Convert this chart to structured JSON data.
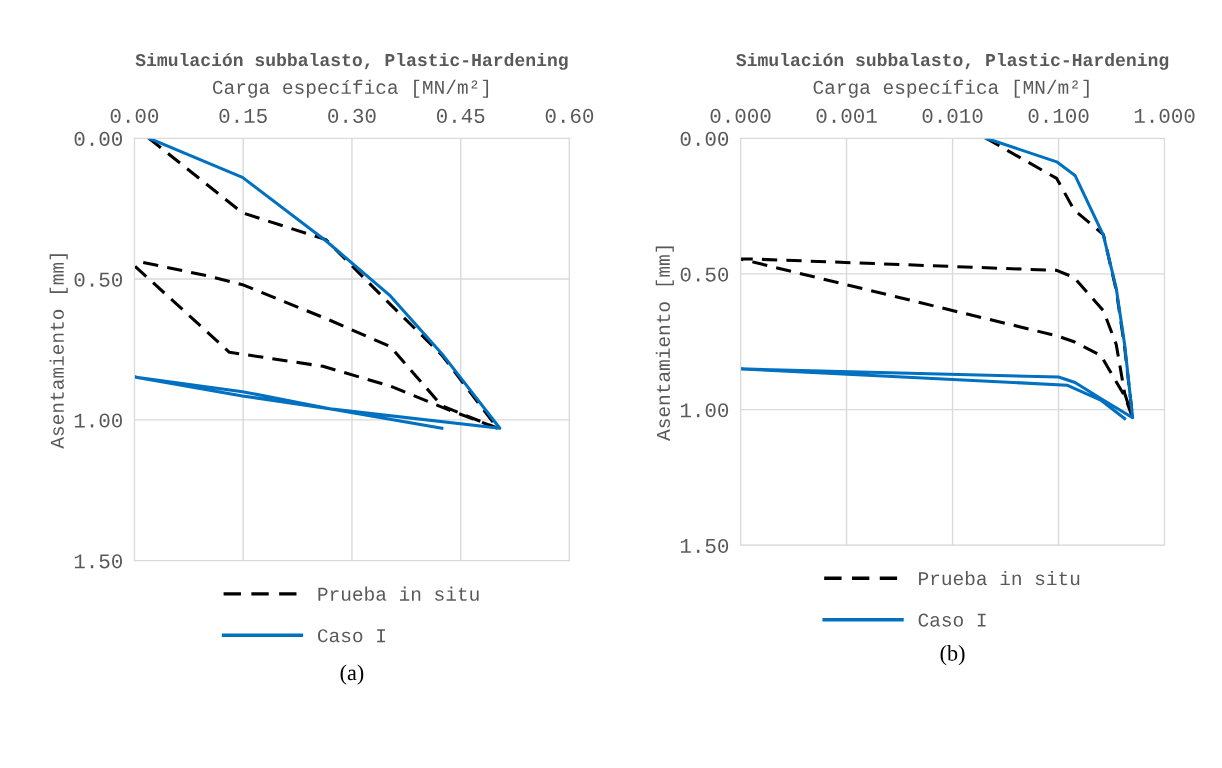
{
  "chart_data": [
    {
      "type": "line",
      "title": "Simulación subbalasto, Plastic-Hardening",
      "xlabel": "Carga específica [MN/m²]",
      "ylabel": "Asentamiento [mm]",
      "xlim": [
        0,
        0.6
      ],
      "xticks": [
        {
          "value": 0,
          "label": "0.00"
        },
        {
          "value": 0.15,
          "label": "0.15"
        },
        {
          "value": 0.3,
          "label": "0.30"
        },
        {
          "value": 0.45,
          "label": "0.45"
        },
        {
          "value": 0.6,
          "label": "0.60"
        }
      ],
      "ylim": [
        1.5,
        0
      ],
      "yticks": [
        {
          "value": 0,
          "label": "0.00"
        },
        {
          "value": 0.5,
          "label": "0.50"
        },
        {
          "value": 1,
          "label": "1.00"
        },
        {
          "value": 1.5,
          "label": "1.50"
        }
      ],
      "grid": true,
      "legend": "bottom",
      "annotations": [
        "(a)"
      ],
      "series": [
        {
          "name": "Prueba in situ",
          "color": "#000000",
          "line_style": "dashed",
          "x": [
            0.02,
            0.149,
            0.264,
            0.353,
            0.424,
            0.501,
            0.424,
            0.353,
            0.26,
            0.131,
            0.001,
            0.01,
            0.103,
            0.149,
            0.264,
            0.353,
            0.424,
            0.501
          ],
          "values": [
            0,
            0.265,
            0.36,
            0.59,
            0.77,
            1.03,
            0.955,
            0.88,
            0.81,
            0.76,
            0.455,
            0.44,
            0.49,
            0.52,
            0.64,
            0.74,
            0.95,
            1.03
          ]
        },
        {
          "name": "Caso I",
          "color": "#0070c0",
          "line_style": "solid",
          "x": [
            0.02,
            0.149,
            0.264,
            0.353,
            0.424,
            0.504,
            0.273,
            0.149,
            0,
            0.149,
            0.273,
            0.424
          ],
          "values": [
            0,
            0.139,
            0.364,
            0.56,
            0.765,
            1.03,
            0.962,
            0.9,
            0.848,
            0.915,
            0.962,
            1.03
          ]
        }
      ]
    },
    {
      "type": "line",
      "title": "Simulación subbalasto, Plastic-Hardening",
      "xlabel": "Carga específica [MN/m²]",
      "ylabel": "Asentamiento [mm]",
      "log": "x",
      "xlim": [
        0.0001,
        1
      ],
      "xticks": [
        {
          "value": 0.0001,
          "label": "0.000"
        },
        {
          "value": 0.001,
          "label": "0.001"
        },
        {
          "value": 0.01,
          "label": "0.010"
        },
        {
          "value": 0.1,
          "label": "0.100"
        },
        {
          "value": 1,
          "label": "1.000"
        }
      ],
      "ylim": [
        1.5,
        0
      ],
      "yticks": [
        {
          "value": 0,
          "label": "0.00"
        },
        {
          "value": 0.5,
          "label": "0.50"
        },
        {
          "value": 1,
          "label": "1.00"
        },
        {
          "value": 1.5,
          "label": "1.50"
        }
      ],
      "grid": true,
      "legend": "bottom",
      "annotations": [
        "(b)"
      ],
      "series": [
        {
          "name": "Prueba in situ",
          "color": "#000000",
          "line_style": "dashed",
          "x": [
            0.0207,
            0.096,
            0.14,
            0.265,
            0.35,
            0.42,
            0.5,
            0.42,
            0.25,
            0.14,
            0.096,
            0.0001,
            0.00013,
            0.096,
            0.14,
            0.265,
            0.35,
            0.42,
            0.5
          ],
          "values": [
            0,
            0.148,
            0.264,
            0.355,
            0.56,
            0.77,
            1.03,
            0.95,
            0.8,
            0.75,
            0.728,
            0.445,
            0.445,
            0.487,
            0.513,
            0.636,
            0.76,
            0.94,
            1.03
          ]
        },
        {
          "name": "Caso I",
          "color": "#0070c0",
          "line_style": "solid",
          "x": [
            0.0207,
            0.096,
            0.143,
            0.265,
            0.35,
            0.42,
            0.5,
            0.25,
            0.143,
            0.1,
            0.0001,
            0.12,
            0.25,
            0.42
          ],
          "values": [
            0,
            0.087,
            0.137,
            0.358,
            0.553,
            0.76,
            1.03,
            0.959,
            0.9,
            0.88,
            0.85,
            0.91,
            0.965,
            1.033
          ]
        }
      ]
    }
  ]
}
